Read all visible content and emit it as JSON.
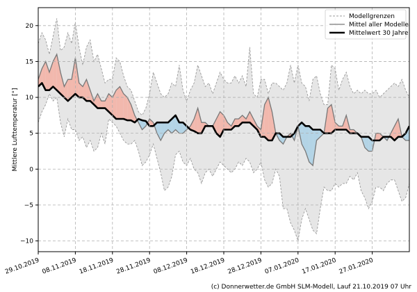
{
  "chart_data": {
    "type": "line",
    "title": "",
    "xlabel": "",
    "ylabel": "Mittlere Lufttemperatur [°]",
    "ylim": [
      -11.5,
      22.5
    ],
    "yticks": [
      -10,
      -5,
      0,
      5,
      10,
      15,
      20
    ],
    "xlim": [
      "2019-10-29",
      "2020-02-06"
    ],
    "xticks": [
      "29.10.2019",
      "08.11.2019",
      "18.11.2019",
      "28.11.2019",
      "08.12.2019",
      "18.12.2019",
      "28.12.2019",
      "07.01.2020",
      "17.01.2020",
      "27.01.2020"
    ],
    "xtick_dates": [
      "2019-10-29",
      "2019-11-08",
      "2019-11-18",
      "2019-11-28",
      "2019-12-08",
      "2019-12-18",
      "2019-12-28",
      "2020-01-07",
      "2020-01-17",
      "2020-01-27"
    ],
    "grid": true,
    "legend_position": "top-right",
    "colors": {
      "envelope_fill": "#e6e6e6",
      "envelope_line": "#999999",
      "mean_line": "#777777",
      "climate_line": "#000000",
      "warm_fill": "#f2b8ad",
      "cold_fill": "#b3d4e6"
    },
    "dates": [
      "2019-10-29",
      "2019-10-30",
      "2019-10-31",
      "2019-11-01",
      "2019-11-02",
      "2019-11-03",
      "2019-11-04",
      "2019-11-05",
      "2019-11-06",
      "2019-11-07",
      "2019-11-08",
      "2019-11-09",
      "2019-11-10",
      "2019-11-11",
      "2019-11-12",
      "2019-11-13",
      "2019-11-14",
      "2019-11-15",
      "2019-11-16",
      "2019-11-17",
      "2019-11-18",
      "2019-11-19",
      "2019-11-20",
      "2019-11-21",
      "2019-11-22",
      "2019-11-23",
      "2019-11-24",
      "2019-11-25",
      "2019-11-26",
      "2019-11-27",
      "2019-11-28",
      "2019-11-29",
      "2019-11-30",
      "2019-12-01",
      "2019-12-02",
      "2019-12-03",
      "2019-12-04",
      "2019-12-05",
      "2019-12-06",
      "2019-12-07",
      "2019-12-08",
      "2019-12-09",
      "2019-12-10",
      "2019-12-11",
      "2019-12-12",
      "2019-12-13",
      "2019-12-14",
      "2019-12-15",
      "2019-12-16",
      "2019-12-17",
      "2019-12-18",
      "2019-12-19",
      "2019-12-20",
      "2019-12-21",
      "2019-12-22",
      "2019-12-23",
      "2019-12-24",
      "2019-12-25",
      "2019-12-26",
      "2019-12-27",
      "2019-12-28",
      "2019-12-29",
      "2019-12-30",
      "2019-12-31",
      "2020-01-01",
      "2020-01-02",
      "2020-01-03",
      "2020-01-04",
      "2020-01-05",
      "2020-01-06",
      "2020-01-07",
      "2020-01-08",
      "2020-01-09",
      "2020-01-10",
      "2020-01-11",
      "2020-01-12",
      "2020-01-13",
      "2020-01-14",
      "2020-01-15",
      "2020-01-16",
      "2020-01-17",
      "2020-01-18",
      "2020-01-19",
      "2020-01-20",
      "2020-01-21",
      "2020-01-22",
      "2020-01-23",
      "2020-01-24",
      "2020-01-25",
      "2020-01-26",
      "2020-01-27",
      "2020-01-28",
      "2020-01-29",
      "2020-01-30",
      "2020-01-31",
      "2020-02-01",
      "2020-02-02",
      "2020-02-03",
      "2020-02-04",
      "2020-02-05",
      "2020-02-06"
    ],
    "series": [
      {
        "name": "Modellgrenzen",
        "style": "dashed",
        "upper": [
          17.5,
          19,
          18,
          16,
          18.5,
          21,
          16.5,
          17,
          19,
          17.5,
          20.5,
          17,
          14.5,
          17,
          18,
          15,
          16,
          14,
          12,
          12.5,
          12.5,
          15.5,
          15,
          13,
          11.5,
          11,
          9.5,
          8,
          7.5,
          8.5,
          10.5,
          13.5,
          12,
          10.5,
          10,
          10.5,
          12,
          11.5,
          14.5,
          11,
          9.5,
          11,
          12,
          14.5,
          13,
          11.5,
          12,
          10.5,
          12,
          13.5,
          12.5,
          12,
          12,
          13,
          12,
          13,
          11.5,
          17,
          10.5,
          10,
          12.5,
          12.5,
          10.5,
          12,
          12,
          11.5,
          11,
          12,
          14.5,
          12,
          14.5,
          12,
          11.5,
          9.5,
          12.5,
          13,
          10.5,
          9,
          9,
          14.5,
          14,
          11,
          12.5,
          13.5,
          11.5,
          10.5,
          11,
          10.5,
          11,
          10.5,
          10.5,
          11,
          10,
          10.5,
          11,
          11.5,
          12,
          11.5,
          12.5,
          11,
          10
        ],
        "lower": [
          6.5,
          8,
          9,
          10.5,
          9.5,
          10,
          6.5,
          4.5,
          7,
          5.5,
          5.5,
          4,
          4.5,
          3,
          4,
          2.5,
          3,
          5,
          3.5,
          7,
          6.5,
          6,
          5,
          4,
          3.5,
          3.5,
          4,
          2.5,
          0.5,
          1,
          2,
          3.5,
          1.5,
          -0.5,
          -3,
          -2.5,
          -1,
          2,
          2.5,
          1,
          0.5,
          1.5,
          0,
          -0.5,
          -2,
          -0.5,
          0,
          -1,
          0,
          1,
          0.5,
          0,
          -0.5,
          0,
          1,
          0.5,
          1.5,
          1,
          -0.5,
          0,
          1,
          -1.5,
          -2.5,
          -2,
          0,
          -1,
          -5.5,
          -5.5,
          -7.5,
          -8.5,
          -10,
          -7,
          -5.5,
          -7,
          -8.5,
          -9,
          -5.5,
          -2.5,
          -3,
          -3,
          -2,
          -2.5,
          -2,
          -2,
          -1,
          -1.5,
          -0.5,
          -3,
          -4,
          -5.5,
          -4.5,
          -2.5,
          -2.5,
          -3,
          -2,
          -1.5,
          -1.5,
          -3,
          -4.5,
          -4,
          -2
        ]
      },
      {
        "name": "Mittel aller Modelle",
        "values": [
          12.5,
          14,
          15,
          13.5,
          15,
          16,
          13.5,
          11.5,
          12.5,
          12.5,
          15.5,
          12,
          11.5,
          12.5,
          11,
          9.5,
          10.5,
          9.5,
          9.5,
          10.5,
          10,
          11,
          11.5,
          10.5,
          10,
          9,
          7.5,
          6.5,
          5.5,
          6,
          7,
          6.5,
          5,
          4,
          5,
          5.5,
          5,
          5.5,
          5,
          5,
          5.5,
          6,
          7,
          8.5,
          6.5,
          6.5,
          6,
          6,
          7,
          8,
          7.5,
          6.5,
          6,
          7,
          7,
          7.5,
          7,
          8,
          7,
          6,
          5.5,
          9,
          10,
          8,
          5,
          4,
          3.5,
          4.5,
          5,
          4,
          6,
          3.5,
          2.5,
          1,
          0.5,
          4,
          4.5,
          5,
          8.5,
          9,
          6.5,
          6,
          6,
          7.5,
          5.5,
          5.5,
          5,
          4.5,
          3,
          2.5,
          2.5,
          5,
          5,
          4.5,
          4,
          5,
          6,
          7,
          4.5,
          4,
          4
        ]
      },
      {
        "name": "Mittelwert 30 Jahre",
        "values": [
          11.5,
          12,
          11,
          11,
          11.5,
          11,
          10.5,
          10,
          9.5,
          10,
          10.5,
          10,
          10,
          9.5,
          9.5,
          9,
          8.5,
          8.5,
          8.5,
          8,
          7.5,
          7,
          7,
          7,
          6.8,
          6.8,
          6.5,
          7,
          6.8,
          6.7,
          6,
          6,
          6.5,
          6.5,
          6.5,
          6.5,
          7,
          7.5,
          6.5,
          6.5,
          6,
          5.5,
          5.3,
          5,
          5,
          6,
          6,
          6,
          5,
          4.5,
          5.5,
          5.5,
          5.5,
          6,
          6,
          6.5,
          6.5,
          6.5,
          6,
          5.5,
          4.5,
          4.5,
          4,
          4,
          5,
          5,
          4.5,
          4.5,
          4.5,
          5,
          6,
          6.5,
          6,
          6,
          5.5,
          5.5,
          5.5,
          5,
          5,
          5,
          5.5,
          5.5,
          5.5,
          5.5,
          5,
          5,
          5,
          4.5,
          4.5,
          4.5,
          4,
          4,
          4,
          4.5,
          4.5,
          4.5,
          4,
          4.5,
          4.5,
          5,
          6
        ]
      }
    ]
  },
  "caption": "(c) Donnerwetter.de GmbH SLM-Modell, Lauf 21.10.2019 07 Uhr"
}
